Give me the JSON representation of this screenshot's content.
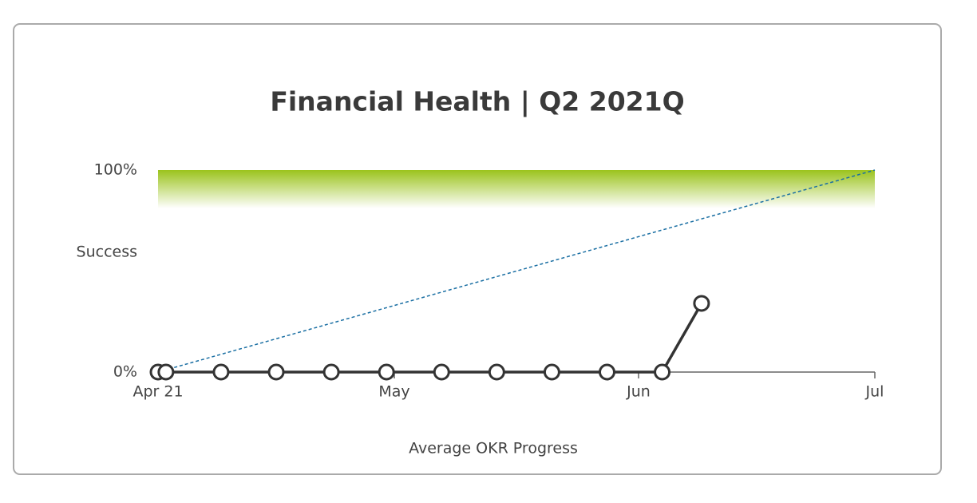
{
  "chart_data": {
    "type": "line",
    "title": "Financial Health | Q2 2021Q",
    "y_label": "Success",
    "x_label": "Average OKR Progress",
    "xlim": [
      "2021-04-01",
      "2021-07-01"
    ],
    "xticks": [
      {
        "value": "2021-04-01",
        "label": "Apr 21"
      },
      {
        "value": "2021-05-01",
        "label": "May"
      },
      {
        "value": "2021-06-01",
        "label": "Jun"
      },
      {
        "value": "2021-07-01",
        "label": "Jul"
      }
    ],
    "ylim": [
      0,
      100
    ],
    "yticks": [
      {
        "value": 0,
        "label": "0%"
      },
      {
        "value": 100,
        "label": "100%"
      }
    ],
    "band": {
      "from": 81,
      "to": 100,
      "color": "#9bc31c"
    },
    "series": [
      {
        "color": "#1a6fa3",
        "line_style": "dashed",
        "markers": false,
        "x": [
          "2021-04-01",
          "2021-07-01"
        ],
        "values": [
          0,
          100
        ]
      },
      {
        "color": "#333333",
        "line_style": "solid",
        "markers": true,
        "x": [
          "2021-04-01",
          "2021-04-02",
          "2021-04-09",
          "2021-04-16",
          "2021-04-23",
          "2021-04-30",
          "2021-05-07",
          "2021-05-14",
          "2021-05-21",
          "2021-05-28",
          "2021-06-04",
          "2021-06-09"
        ],
        "values": [
          0,
          0,
          0,
          0,
          0,
          0,
          0,
          0,
          0,
          0,
          0,
          34
        ]
      }
    ]
  }
}
